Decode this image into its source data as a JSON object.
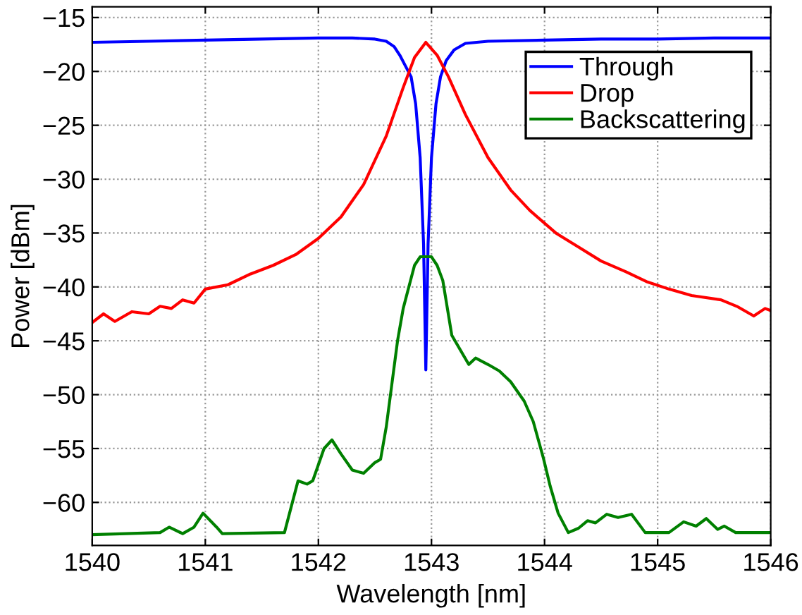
{
  "chart_data": {
    "type": "line",
    "xlabel": "Wavelength [nm]",
    "ylabel": "Power [dBm]",
    "xlim": [
      1540,
      1546
    ],
    "ylim": [
      -64,
      -14
    ],
    "xticks": [
      1540,
      1541,
      1542,
      1543,
      1544,
      1545,
      1546
    ],
    "yticks": [
      -60,
      -55,
      -50,
      -45,
      -40,
      -35,
      -30,
      -25,
      -20,
      -15
    ],
    "grid": true,
    "legend": "top right",
    "marker": "none",
    "line_style": "solid",
    "series": [
      {
        "name": "Through",
        "color": "#0000ff",
        "x": [
          1540,
          1540.5,
          1541,
          1541.5,
          1542,
          1542.3,
          1542.5,
          1542.6,
          1542.67,
          1542.72,
          1542.77,
          1542.82,
          1542.86,
          1542.9,
          1542.93,
          1542.95,
          1542.97,
          1543.0,
          1543.04,
          1543.08,
          1543.13,
          1543.2,
          1543.3,
          1543.5,
          1544,
          1544.5,
          1545,
          1545.5,
          1546
        ],
        "values": [
          -17.3,
          -17.2,
          -17.1,
          -17.0,
          -16.9,
          -16.9,
          -17.0,
          -17.2,
          -17.7,
          -18.5,
          -19.5,
          -20.5,
          -23,
          -28,
          -36,
          -47.7,
          -36,
          -28,
          -23,
          -20.5,
          -19,
          -18,
          -17.4,
          -17.2,
          -17.1,
          -17.0,
          -17.0,
          -16.9,
          -16.9
        ]
      },
      {
        "name": "Drop",
        "color": "#ff0000",
        "x": [
          1540,
          1540.1,
          1540.2,
          1540.35,
          1540.5,
          1540.6,
          1540.7,
          1540.8,
          1540.9,
          1541,
          1541.2,
          1541.4,
          1541.6,
          1541.8,
          1542,
          1542.2,
          1542.4,
          1542.6,
          1542.75,
          1542.85,
          1542.95,
          1543.05,
          1543.15,
          1543.3,
          1543.5,
          1543.7,
          1543.87,
          1544.1,
          1544.3,
          1544.5,
          1544.72,
          1544.9,
          1545.1,
          1545.3,
          1545.56,
          1545.7,
          1545.85,
          1545.95,
          1546
        ],
        "values": [
          -43.3,
          -42.5,
          -43.2,
          -42.3,
          -42.5,
          -41.8,
          -42.0,
          -41.2,
          -41.5,
          -40.2,
          -39.8,
          -38.8,
          -38.0,
          -37.0,
          -35.5,
          -33.5,
          -30.5,
          -26,
          -21.5,
          -18.7,
          -17.3,
          -18.5,
          -20.5,
          -24,
          -28,
          -31,
          -32.9,
          -35,
          -36.3,
          -37.6,
          -38.6,
          -39.5,
          -40.2,
          -40.8,
          -41.2,
          -41.8,
          -42.7,
          -42.0,
          -42.2
        ]
      },
      {
        "name": "Backscattering",
        "color": "#008000",
        "x": [
          1540,
          1540.6,
          1540.68,
          1540.8,
          1540.9,
          1540.98,
          1541.1,
          1541.15,
          1541.7,
          1541.82,
          1541.9,
          1541.95,
          1542.05,
          1542.12,
          1542.2,
          1542.3,
          1542.4,
          1542.5,
          1542.55,
          1542.6,
          1542.65,
          1542.7,
          1542.75,
          1542.8,
          1542.85,
          1542.9,
          1543.0,
          1543.05,
          1543.1,
          1543.18,
          1543.33,
          1543.39,
          1543.5,
          1543.6,
          1543.7,
          1543.82,
          1543.9,
          1543.99,
          1544.05,
          1544.12,
          1544.21,
          1544.3,
          1544.38,
          1544.45,
          1544.55,
          1544.65,
          1544.77,
          1544.89,
          1545.1,
          1545.23,
          1545.34,
          1545.43,
          1545.53,
          1545.59,
          1545.69,
          1546
        ],
        "values": [
          -63,
          -62.8,
          -62.3,
          -62.9,
          -62.3,
          -61,
          -62.3,
          -62.9,
          -62.8,
          -58,
          -58.3,
          -58,
          -55,
          -54.2,
          -55.5,
          -57,
          -57.3,
          -56.3,
          -56,
          -53,
          -49,
          -45,
          -42,
          -40,
          -38,
          -37.2,
          -37.2,
          -38,
          -39.4,
          -44.5,
          -47.2,
          -46.6,
          -47.2,
          -47.8,
          -48.8,
          -50.6,
          -52.5,
          -55.9,
          -58.5,
          -61,
          -62.8,
          -62.4,
          -61.7,
          -61.9,
          -61.1,
          -61.4,
          -61.1,
          -62.8,
          -62.8,
          -61.8,
          -62.2,
          -61.5,
          -62.5,
          -62.2,
          -62.8,
          -62.8
        ]
      }
    ]
  }
}
